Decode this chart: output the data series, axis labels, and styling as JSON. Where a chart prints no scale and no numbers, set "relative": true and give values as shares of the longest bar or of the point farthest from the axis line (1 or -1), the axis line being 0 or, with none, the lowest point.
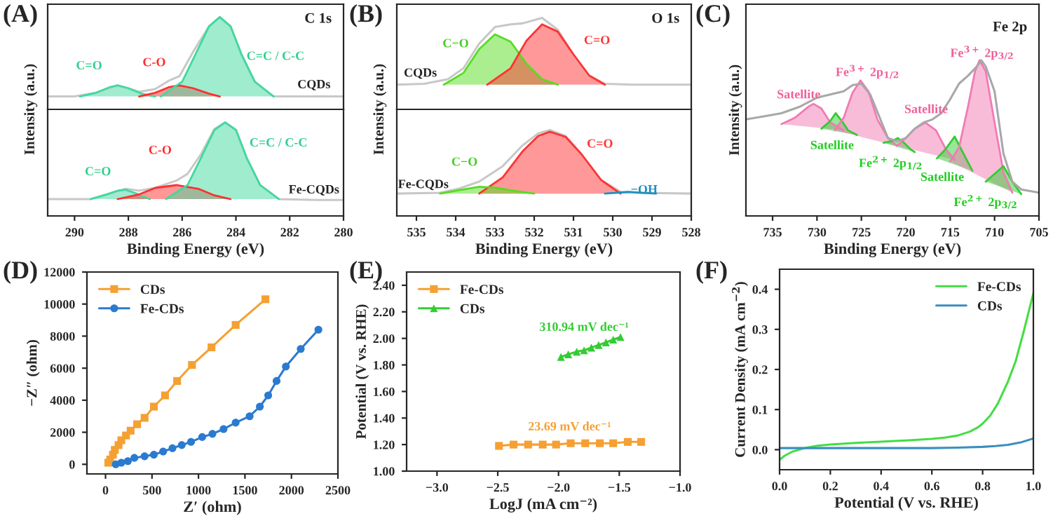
{
  "chart_data": [
    {
      "type": "area",
      "relative": true,
      "xlim": [
        291,
        280
      ],
      "tick_labels": false,
      "ylabel": "Intensity (a.u.)",
      "annotations": [
        "(A)",
        "C 1s",
        "C=O",
        "C-O",
        "C=C / C-C",
        "CQDs"
      ],
      "series": [
        {
          "type": "line",
          "color": "#c8c8c8",
          "x": [
            291,
            290,
            289.2,
            288.4,
            287.6,
            287,
            286.5,
            286.1,
            285.6,
            285,
            284.6,
            284.2,
            283.8,
            283.3,
            282.6,
            281,
            280
          ],
          "values": [
            0.14,
            0.14,
            0.18,
            0.26,
            0.19,
            0.22,
            0.31,
            0.36,
            0.62,
            0.9,
            1.0,
            0.9,
            0.6,
            0.3,
            0.14,
            0.14,
            0.14
          ]
        },
        {
          "color": "#40d9a0",
          "x": [
            289.8,
            289.2,
            288.7,
            288.4,
            288.0,
            287.5,
            287.0
          ],
          "values": [
            0.14,
            0.18,
            0.24,
            0.26,
            0.23,
            0.17,
            0.14
          ]
        },
        {
          "color": "#ff3030",
          "x": [
            287.6,
            287,
            286.5,
            286.1,
            285.6,
            285,
            284.6
          ],
          "values": [
            0.14,
            0.18,
            0.24,
            0.26,
            0.23,
            0.17,
            0.14
          ]
        },
        {
          "color": "#40d9a0",
          "x": [
            286.8,
            286,
            285.5,
            285,
            284.6,
            284.2,
            283.8,
            283.3,
            282.6
          ],
          "values": [
            0.14,
            0.3,
            0.6,
            0.9,
            1.0,
            0.9,
            0.6,
            0.3,
            0.14
          ]
        }
      ]
    },
    {
      "type": "area",
      "relative": true,
      "xlim": [
        291,
        280
      ],
      "xticks": [
        290,
        288,
        286,
        284,
        282,
        280
      ],
      "tick_labels": "x",
      "xlabel": "Binding Energy (eV)",
      "annotations": [
        "C=O",
        "C-O",
        "C=C / C-C",
        "Fe-CQDs"
      ],
      "series": [
        {
          "type": "line",
          "color": "#c8c8c8",
          "x": [
            291,
            289.4,
            288.8,
            288.1,
            287.6,
            287,
            286.2,
            285.8,
            285.3,
            284.8,
            284.4,
            284,
            283.6,
            283.1,
            282.4,
            281,
            280
          ],
          "values": [
            0.18,
            0.18,
            0.23,
            0.29,
            0.27,
            0.3,
            0.38,
            0.45,
            0.66,
            0.93,
            1.0,
            0.92,
            0.62,
            0.33,
            0.18,
            0.17,
            0.17
          ]
        },
        {
          "color": "#40d9a0",
          "x": [
            289.4,
            288.8,
            288.4,
            288.1,
            287.7,
            287.2
          ],
          "values": [
            0.18,
            0.23,
            0.27,
            0.28,
            0.24,
            0.18
          ]
        },
        {
          "color": "#ff3030",
          "x": [
            288.4,
            287.6,
            287,
            286.2,
            285.4,
            284.8,
            284.2
          ],
          "values": [
            0.18,
            0.23,
            0.3,
            0.33,
            0.29,
            0.22,
            0.18
          ]
        },
        {
          "color": "#40d9a0",
          "x": [
            286.6,
            285.8,
            285.3,
            284.8,
            284.4,
            284,
            283.6,
            283.1,
            282.4
          ],
          "values": [
            0.18,
            0.33,
            0.62,
            0.92,
            1.0,
            0.92,
            0.62,
            0.33,
            0.18
          ]
        }
      ]
    },
    {
      "type": "area",
      "relative": true,
      "xlim": [
        535.5,
        528
      ],
      "tick_labels": false,
      "ylabel": "Intensity (a.u.)",
      "annotations": [
        "(B)",
        "O 1s",
        "C−O",
        "C=O",
        "CQDs"
      ],
      "series": [
        {
          "type": "line",
          "color": "#c8c8c8",
          "x": [
            535.5,
            534.8,
            534.2,
            533.8,
            533.4,
            533,
            532.6,
            532.3,
            531.8,
            531.4,
            531,
            530.6,
            530.2,
            529.5,
            528
          ],
          "values": [
            0.27,
            0.28,
            0.33,
            0.45,
            0.72,
            0.9,
            0.93,
            0.94,
            1.0,
            0.87,
            0.6,
            0.37,
            0.28,
            0.27,
            0.27
          ]
        },
        {
          "color": "#55dd22",
          "x": [
            534.3,
            533.8,
            533.4,
            533,
            532.6,
            532.2,
            531.8,
            531.4
          ],
          "values": [
            0.27,
            0.4,
            0.66,
            0.82,
            0.74,
            0.5,
            0.33,
            0.27
          ]
        },
        {
          "color": "#ff3333",
          "x": [
            533.2,
            532.6,
            532.2,
            531.8,
            531.4,
            531,
            530.6,
            530.2
          ],
          "values": [
            0.27,
            0.45,
            0.75,
            0.93,
            0.85,
            0.6,
            0.37,
            0.27
          ]
        }
      ]
    },
    {
      "type": "area",
      "relative": true,
      "xlim": [
        535.5,
        528
      ],
      "xticks": [
        535,
        534,
        533,
        532,
        531,
        530,
        529,
        528
      ],
      "tick_labels": "x",
      "xlabel": "Binding Energy (eV)",
      "annotations": [
        "C−O",
        "C=O",
        "−OH",
        "Fe-CQDs"
      ],
      "series": [
        {
          "type": "line",
          "color": "#c8c8c8",
          "x": [
            535.5,
            534.4,
            533.9,
            533.4,
            532.8,
            532.3,
            531.9,
            531.6,
            531.2,
            530.8,
            530.3,
            529.8,
            529.3,
            528
          ],
          "values": [
            0.26,
            0.27,
            0.32,
            0.4,
            0.58,
            0.82,
            0.96,
            1.0,
            0.93,
            0.72,
            0.42,
            0.28,
            0.27,
            0.26
          ]
        },
        {
          "color": "#ff3333",
          "x": [
            533.4,
            532.8,
            532.3,
            531.9,
            531.6,
            531.2,
            530.8,
            530.3,
            529.8
          ],
          "values": [
            0.26,
            0.45,
            0.75,
            0.93,
            0.98,
            0.92,
            0.72,
            0.42,
            0.26
          ]
        },
        {
          "color": "#55dd22",
          "x": [
            534.4,
            533.9,
            533.4,
            533,
            532.5,
            532
          ],
          "values": [
            0.26,
            0.3,
            0.34,
            0.33,
            0.29,
            0.26
          ]
        },
        {
          "color": "#1e90c0",
          "x": [
            530.2,
            529.9,
            529.6,
            529.3,
            528.9
          ],
          "values": [
            0.26,
            0.27,
            0.28,
            0.27,
            0.26
          ]
        }
      ]
    },
    {
      "type": "area",
      "relative": true,
      "xlim": [
        738,
        705
      ],
      "xticks": [
        735,
        730,
        725,
        720,
        715,
        710,
        705
      ],
      "xlabel": "Binding Energy (eV)",
      "ylabel": "Intensity (a.u.)",
      "annotations": [
        "(C)",
        "Fe 2p",
        "Satellite",
        "Fe$^{3+}$ 2p$_{1/2}$",
        "Satellite",
        "Fe$^{3+}$ 2p$_{3/2}$",
        "Satellite",
        "Fe$^{2+}$ 2p$_{1/2}$",
        "Satellite",
        "Fe$^{2+}$ 2p$_{3/2}$"
      ],
      "series": [
        {
          "color": "#f27ab4",
          "x": [
            734,
            732.5,
            731,
            730.4,
            729.5,
            728.5,
            727
          ],
          "values": [
            0.59,
            0.63,
            0.7,
            0.72,
            0.69,
            0.6,
            0.55
          ]
        },
        {
          "color": "#33cc33",
          "x": [
            729.5,
            728.5,
            727.9,
            727.2,
            726.5,
            725.5
          ],
          "values": [
            0.56,
            0.61,
            0.66,
            0.61,
            0.55,
            0.52
          ]
        },
        {
          "color": "#f27ab4",
          "x": [
            728,
            727,
            726,
            725.1,
            724.2,
            723.2,
            722,
            721
          ],
          "values": [
            0.55,
            0.63,
            0.79,
            0.87,
            0.8,
            0.62,
            0.5,
            0.45
          ]
        },
        {
          "color": "#33cc33",
          "x": [
            722.5,
            721.6,
            720.9,
            720.2,
            719.5,
            719
          ],
          "values": [
            0.47,
            0.48,
            0.5,
            0.47,
            0.43,
            0.41
          ]
        },
        {
          "color": "#f27ab4",
          "x": [
            721,
            720,
            719,
            717.8,
            716.6,
            715.5,
            714.5
          ],
          "values": [
            0.45,
            0.5,
            0.56,
            0.6,
            0.55,
            0.43,
            0.36
          ]
        },
        {
          "color": "#33cc33",
          "x": [
            716.5,
            715.5,
            714.5,
            713.5,
            712.5
          ],
          "values": [
            0.37,
            0.43,
            0.51,
            0.4,
            0.29
          ]
        },
        {
          "color": "#f27ab4",
          "x": [
            715,
            714,
            713,
            712.2,
            711.7,
            711,
            710,
            709,
            708
          ],
          "values": [
            0.35,
            0.44,
            0.7,
            0.93,
            1.0,
            0.93,
            0.6,
            0.28,
            0.15
          ]
        },
        {
          "color": "#33cc33",
          "x": [
            711,
            710,
            709,
            708,
            707
          ],
          "values": [
            0.22,
            0.27,
            0.32,
            0.22,
            0.14
          ]
        },
        {
          "type": "line",
          "color": "#a8a8a8",
          "x": [
            738,
            736,
            734,
            732,
            730,
            728.5,
            727,
            726,
            725,
            724,
            723,
            722,
            721,
            720,
            719,
            718,
            717,
            716,
            715,
            714,
            713,
            712,
            711.5,
            711,
            710,
            709.5,
            709,
            708,
            707,
            706,
            705
          ],
          "values": [
            0.62,
            0.64,
            0.66,
            0.7,
            0.76,
            0.78,
            0.8,
            0.84,
            0.85,
            0.78,
            0.64,
            0.5,
            0.48,
            0.5,
            0.56,
            0.6,
            0.62,
            0.66,
            0.75,
            0.85,
            0.9,
            0.96,
            1.0,
            0.96,
            0.8,
            0.6,
            0.4,
            0.22,
            0.17,
            0.16,
            0.15
          ]
        }
      ]
    },
    {
      "type": "line",
      "xlim": [
        -200,
        2500
      ],
      "ylim": [
        -600,
        12000
      ],
      "xticks": [
        0,
        500,
        1000,
        1500,
        2000,
        2500
      ],
      "yticks": [
        0,
        2000,
        4000,
        6000,
        8000,
        10000,
        12000
      ],
      "xlabel": "Z′ (ohm)",
      "ylabel": "−Z″ (ohm)",
      "legend": "top left",
      "annotations": [
        "(D)"
      ],
      "series": [
        {
          "name": "CDs",
          "color": "#f5a033",
          "marker": "square",
          "x": [
            30,
            50,
            80,
            100,
            140,
            170,
            220,
            270,
            340,
            420,
            520,
            640,
            770,
            930,
            1140,
            1400,
            1720
          ],
          "values": [
            100,
            300,
            600,
            900,
            1200,
            1500,
            1800,
            2100,
            2500,
            2900,
            3600,
            4300,
            5200,
            6200,
            7300,
            8700,
            10300
          ]
        },
        {
          "name": "Fe-CDs",
          "color": "#2a7bd0",
          "marker": "circle",
          "x": [
            110,
            170,
            240,
            310,
            420,
            520,
            620,
            720,
            820,
            920,
            1040,
            1150,
            1270,
            1400,
            1550,
            1660,
            1750,
            1840,
            1940,
            2100,
            2290
          ],
          "values": [
            0,
            100,
            200,
            400,
            500,
            600,
            800,
            1000,
            1200,
            1400,
            1700,
            1900,
            2200,
            2600,
            3000,
            3600,
            4300,
            5200,
            6100,
            7200,
            8400
          ]
        }
      ]
    },
    {
      "type": "line",
      "xlim": [
        -3.25,
        -1.0
      ],
      "ylim": [
        1.0,
        2.5
      ],
      "xticks": [
        {
          "value": -3.0,
          "label": "−3.0"
        },
        {
          "value": -2.5,
          "label": "−2.5"
        },
        {
          "value": -2.0,
          "label": "−2.0"
        },
        {
          "value": -1.5,
          "label": "−1.5"
        },
        {
          "value": -1.0,
          "label": "−1.0"
        }
      ],
      "yticks": [
        {
          "value": 1.0,
          "label": "1.00"
        },
        {
          "value": 1.2,
          "label": "1.20"
        },
        {
          "value": 1.4,
          "label": "1.40"
        },
        {
          "value": 1.6,
          "label": "1.60"
        },
        {
          "value": 1.8,
          "label": "1.80"
        },
        {
          "value": 2.0,
          "label": "2.00"
        },
        {
          "value": 2.2,
          "label": "2.20"
        },
        {
          "value": 2.4,
          "label": "2.40"
        }
      ],
      "xlabel": "LogJ (mA cm⁻²)",
      "ylabel": "Potential (V vs. RHE)",
      "legend": "top left",
      "annotations": [
        "(E)",
        "310.94 mV dec⁻¹",
        "23.69 mV dec⁻¹"
      ],
      "series": [
        {
          "name": "Fe-CDs",
          "color": "#f5a033",
          "marker": "square",
          "x": [
            -2.49,
            -2.37,
            -2.25,
            -2.13,
            -2.02,
            -1.9,
            -1.78,
            -1.66,
            -1.55,
            -1.43,
            -1.32
          ],
          "values": [
            1.19,
            1.2,
            1.2,
            1.2,
            1.2,
            1.21,
            1.21,
            1.21,
            1.21,
            1.22,
            1.22
          ]
        },
        {
          "name": "CDs",
          "color": "#33cc33",
          "marker": "triangle",
          "x": [
            -1.98,
            -1.92,
            -1.85,
            -1.79,
            -1.73,
            -1.67,
            -1.61,
            -1.55,
            -1.49
          ],
          "values": [
            1.86,
            1.88,
            1.9,
            1.91,
            1.93,
            1.95,
            1.97,
            1.99,
            2.01
          ]
        }
      ]
    },
    {
      "type": "line",
      "xlim": [
        0,
        1
      ],
      "ylim": [
        -0.05,
        0.45
      ],
      "xticks": [
        {
          "value": 0,
          "label": "0.0"
        },
        {
          "value": 0.2,
          "label": "0.2"
        },
        {
          "value": 0.4,
          "label": "0.4"
        },
        {
          "value": 0.6,
          "label": "0.6"
        },
        {
          "value": 0.8,
          "label": "0.8"
        },
        {
          "value": 1.0,
          "label": "1.0"
        }
      ],
      "yticks": [
        {
          "value": 0,
          "label": "0.0"
        },
        {
          "value": 0.1,
          "label": "0.1"
        },
        {
          "value": 0.2,
          "label": "0.2"
        },
        {
          "value": 0.3,
          "label": "0.3"
        },
        {
          "value": 0.4,
          "label": "0.4"
        }
      ],
      "xlabel": "Potential (V vs. RHE)",
      "ylabel": "Current Density (mA cm$^{−2}$)",
      "legend": "top right",
      "annotations": [
        "(F)"
      ],
      "series": [
        {
          "name": "Fe-CDs",
          "color": "#44dd44",
          "x": [
            0,
            0.02,
            0.05,
            0.1,
            0.15,
            0.2,
            0.3,
            0.4,
            0.5,
            0.6,
            0.65,
            0.7,
            0.75,
            0.78,
            0.8,
            0.83,
            0.86,
            0.9,
            0.93,
            0.96,
            0.98,
            1.0
          ],
          "values": [
            -0.025,
            -0.015,
            -0.005,
            0.004,
            0.01,
            0.013,
            0.017,
            0.02,
            0.023,
            0.027,
            0.03,
            0.035,
            0.045,
            0.055,
            0.065,
            0.085,
            0.115,
            0.17,
            0.22,
            0.29,
            0.34,
            0.39
          ]
        },
        {
          "name": "CDs",
          "color": "#3a8fbf",
          "x": [
            0,
            0.2,
            0.4,
            0.6,
            0.7,
            0.8,
            0.85,
            0.9,
            0.95,
            1.0
          ],
          "values": [
            0.004,
            0.004,
            0.004,
            0.004,
            0.005,
            0.007,
            0.009,
            0.012,
            0.018,
            0.028
          ]
        }
      ]
    }
  ]
}
